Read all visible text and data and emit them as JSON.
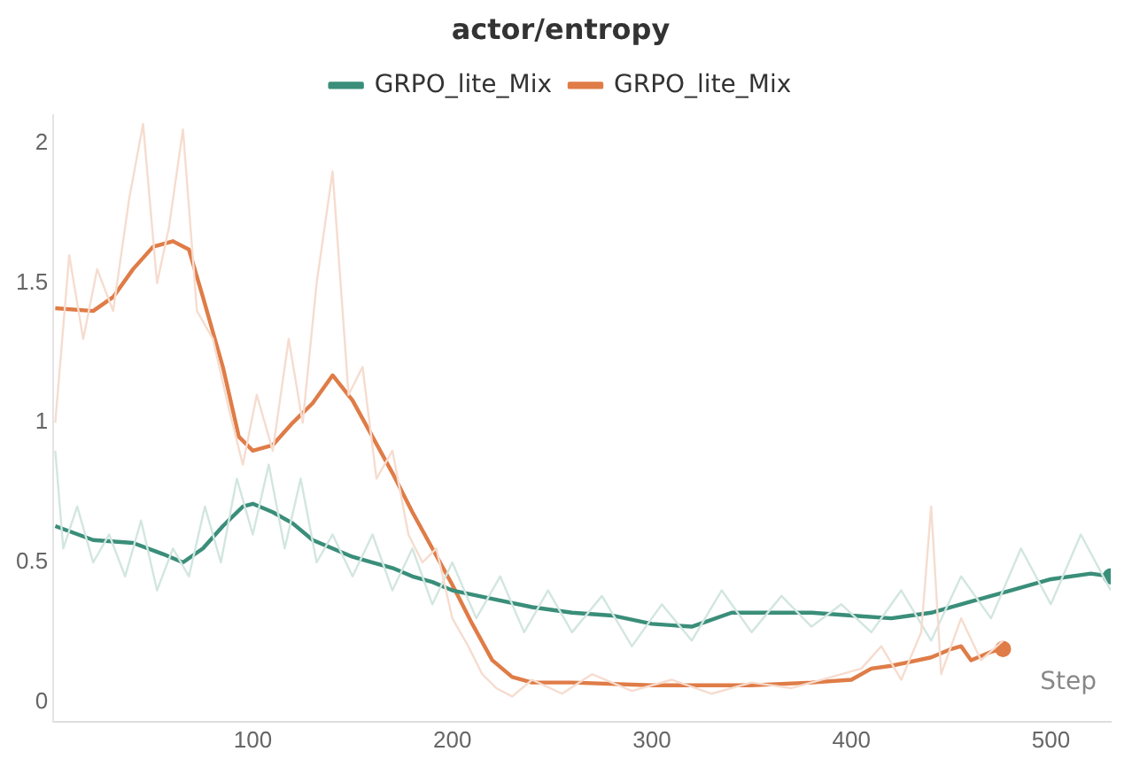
{
  "chart_data": {
    "type": "line",
    "title": "actor/entropy",
    "xlabel": "Step",
    "legend": "top",
    "xlim": [
      0,
      530
    ],
    "ylim": [
      -0.07,
      2.1
    ],
    "xticks": [
      100,
      200,
      300,
      400,
      500
    ],
    "yticks": [
      0,
      0.5,
      1,
      1.5,
      2
    ],
    "series": [
      {
        "color": "#f6dccf",
        "x": [
          1,
          8,
          15,
          22,
          30,
          38,
          45,
          52,
          58,
          65,
          72,
          80,
          88,
          95,
          102,
          110,
          118,
          125,
          132,
          140,
          148,
          155,
          162,
          170,
          178,
          185,
          192,
          200,
          208,
          215,
          222,
          230,
          240,
          255,
          270,
          290,
          310,
          330,
          350,
          370,
          390,
          405,
          415,
          425,
          435,
          440,
          445,
          455,
          465,
          476
        ],
        "values": [
          1.0,
          1.6,
          1.3,
          1.55,
          1.4,
          1.8,
          2.07,
          1.5,
          1.7,
          2.05,
          1.4,
          1.3,
          1.05,
          0.85,
          1.1,
          0.9,
          1.3,
          1.0,
          1.5,
          1.9,
          1.1,
          1.2,
          0.8,
          0.9,
          0.6,
          0.5,
          0.55,
          0.3,
          0.2,
          0.1,
          0.05,
          0.02,
          0.08,
          0.03,
          0.1,
          0.04,
          0.08,
          0.03,
          0.07,
          0.05,
          0.09,
          0.12,
          0.2,
          0.08,
          0.25,
          0.7,
          0.1,
          0.3,
          0.15,
          0.22
        ]
      },
      {
        "color": "#d2e6e0",
        "x": [
          1,
          5,
          12,
          20,
          28,
          36,
          44,
          52,
          60,
          68,
          76,
          84,
          92,
          100,
          108,
          116,
          124,
          132,
          140,
          150,
          160,
          170,
          180,
          190,
          200,
          212,
          224,
          236,
          248,
          260,
          275,
          290,
          305,
          320,
          335,
          350,
          365,
          380,
          395,
          410,
          425,
          440,
          455,
          470,
          485,
          500,
          515,
          530
        ],
        "values": [
          0.9,
          0.55,
          0.7,
          0.5,
          0.6,
          0.45,
          0.65,
          0.4,
          0.55,
          0.45,
          0.7,
          0.5,
          0.8,
          0.6,
          0.85,
          0.55,
          0.8,
          0.5,
          0.6,
          0.45,
          0.6,
          0.4,
          0.55,
          0.35,
          0.5,
          0.3,
          0.45,
          0.25,
          0.4,
          0.25,
          0.38,
          0.2,
          0.35,
          0.22,
          0.4,
          0.25,
          0.38,
          0.27,
          0.35,
          0.25,
          0.4,
          0.22,
          0.45,
          0.3,
          0.55,
          0.35,
          0.6,
          0.4
        ]
      },
      {
        "name": "GRPO_lite_Mix",
        "color": "#3a8e7a",
        "x": [
          1,
          20,
          40,
          55,
          65,
          75,
          85,
          95,
          100,
          110,
          120,
          130,
          140,
          150,
          160,
          170,
          180,
          190,
          200,
          220,
          240,
          260,
          280,
          300,
          320,
          340,
          360,
          380,
          400,
          420,
          440,
          460,
          480,
          500,
          520,
          530
        ],
        "values": [
          0.63,
          0.58,
          0.57,
          0.53,
          0.5,
          0.55,
          0.63,
          0.7,
          0.71,
          0.68,
          0.64,
          0.58,
          0.55,
          0.52,
          0.5,
          0.48,
          0.45,
          0.43,
          0.4,
          0.37,
          0.34,
          0.32,
          0.31,
          0.28,
          0.27,
          0.32,
          0.32,
          0.32,
          0.31,
          0.3,
          0.32,
          0.36,
          0.4,
          0.44,
          0.46,
          0.45
        ]
      },
      {
        "name": "GRPO_lite_Mix",
        "color": "#df7c47",
        "x": [
          1,
          20,
          30,
          40,
          50,
          60,
          68,
          75,
          85,
          93,
          100,
          110,
          120,
          130,
          140,
          150,
          160,
          170,
          180,
          190,
          200,
          210,
          220,
          230,
          240,
          260,
          300,
          350,
          380,
          400,
          410,
          420,
          440,
          450,
          455,
          460,
          470,
          476
        ],
        "values": [
          1.41,
          1.4,
          1.45,
          1.55,
          1.63,
          1.65,
          1.62,
          1.45,
          1.2,
          0.95,
          0.9,
          0.92,
          1.0,
          1.07,
          1.17,
          1.08,
          0.95,
          0.82,
          0.68,
          0.55,
          0.42,
          0.28,
          0.15,
          0.09,
          0.07,
          0.07,
          0.06,
          0.06,
          0.07,
          0.08,
          0.12,
          0.13,
          0.16,
          0.19,
          0.2,
          0.15,
          0.18,
          0.19
        ]
      }
    ]
  }
}
